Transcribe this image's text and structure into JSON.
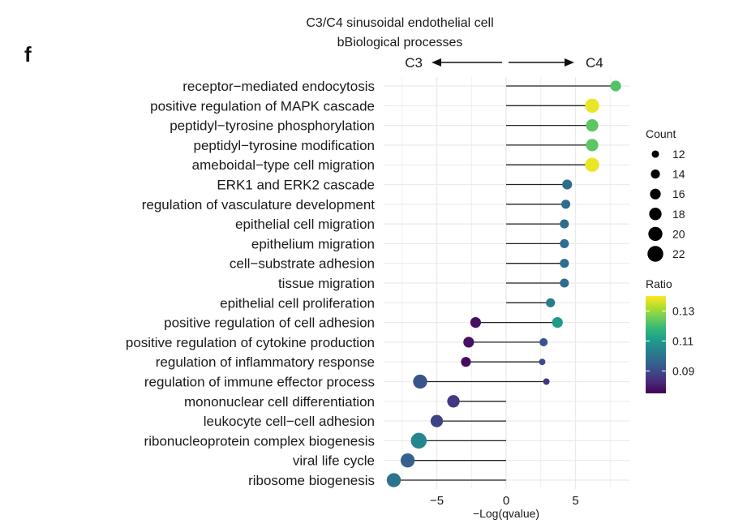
{
  "panel_label": "f",
  "chart_data": {
    "type": "lollipop",
    "title": "C3/C4 sinusoidal endothelial cell",
    "subtitle": "bBiological processes",
    "direction_left": "C3",
    "direction_right": "C4",
    "xlabel": "−Log(qvalue)",
    "xlim": [
      -8.8,
      8.8
    ],
    "xticks": [
      -5,
      0,
      5
    ],
    "xtick_labels": [
      "−5",
      "0",
      "5"
    ],
    "categories": [
      "receptor−mediated endocytosis",
      "positive regulation of MAPK cascade",
      "peptidyl−tyrosine phosphorylation",
      "peptidyl−tyrosine modification",
      "ameboidal−type cell migration",
      "ERK1 and ERK2 cascade",
      "regulation of vasculature development",
      "epithelial cell migration",
      "epithelium migration",
      "cell−substrate adhesion",
      "tissue migration",
      "epithelial cell proliferation",
      "positive regulation of cell adhesion",
      "positive regulation of cytokine production",
      "regulation of inflammatory response",
      "regulation of immune effector process",
      "mononuclear cell differentiation",
      "leukocyte cell−cell adhesion",
      "ribonucleoprotein complex biogenesis",
      "viral life cycle",
      "ribosome biogenesis"
    ],
    "series": [
      {
        "name": "C4",
        "values": [
          7.9,
          6.2,
          6.2,
          6.2,
          6.2,
          4.4,
          4.3,
          4.2,
          4.2,
          4.2,
          4.2,
          3.2,
          3.7,
          2.7,
          2.6,
          2.9,
          null,
          null,
          null,
          null,
          null
        ],
        "counts": [
          16,
          20,
          18,
          18,
          20,
          15,
          14,
          14,
          14,
          14,
          14,
          14,
          16,
          13,
          11,
          11,
          null,
          null,
          null,
          null,
          null
        ],
        "ratios": [
          0.122,
          0.138,
          0.123,
          0.123,
          0.138,
          0.098,
          0.098,
          0.098,
          0.098,
          0.098,
          0.098,
          0.102,
          0.11,
          0.092,
          0.09,
          0.085,
          null,
          null,
          null,
          null,
          null
        ]
      },
      {
        "name": "C3",
        "values": [
          null,
          null,
          null,
          null,
          null,
          null,
          null,
          null,
          null,
          null,
          null,
          null,
          -2.2,
          -2.7,
          -2.9,
          -6.2,
          -3.8,
          -5.0,
          -6.3,
          -7.1,
          -8.1
        ],
        "counts": [
          null,
          null,
          null,
          null,
          null,
          null,
          null,
          null,
          null,
          null,
          null,
          null,
          16,
          16,
          15,
          20,
          18,
          18,
          22,
          20,
          20
        ],
        "ratios": [
          null,
          null,
          null,
          null,
          null,
          null,
          null,
          null,
          null,
          null,
          null,
          null,
          0.078,
          0.078,
          0.077,
          0.092,
          0.086,
          0.088,
          0.105,
          0.095,
          0.1
        ]
      }
    ],
    "legend_count": {
      "title": "Count",
      "values": [
        12,
        14,
        16,
        18,
        20,
        22
      ],
      "labels": [
        "12",
        "14",
        "16",
        "18",
        "20",
        "22"
      ]
    },
    "legend_ratio": {
      "title": "Ratio",
      "range": [
        0.075,
        0.14
      ],
      "ticks": [
        0.09,
        0.11,
        0.13
      ],
      "tick_labels": [
        "0.09",
        "0.11",
        "0.13"
      ]
    },
    "colors": {
      "viridis": [
        "#440154",
        "#482878",
        "#3e4989",
        "#31688e",
        "#26828e",
        "#1f9e89",
        "#35b779",
        "#6ece58",
        "#b5de2b",
        "#fde725"
      ],
      "stem": "#222222",
      "grid": "#ebebeb",
      "text": "#1a1a1a"
    },
    "grid": true,
    "legend_position": "right"
  }
}
